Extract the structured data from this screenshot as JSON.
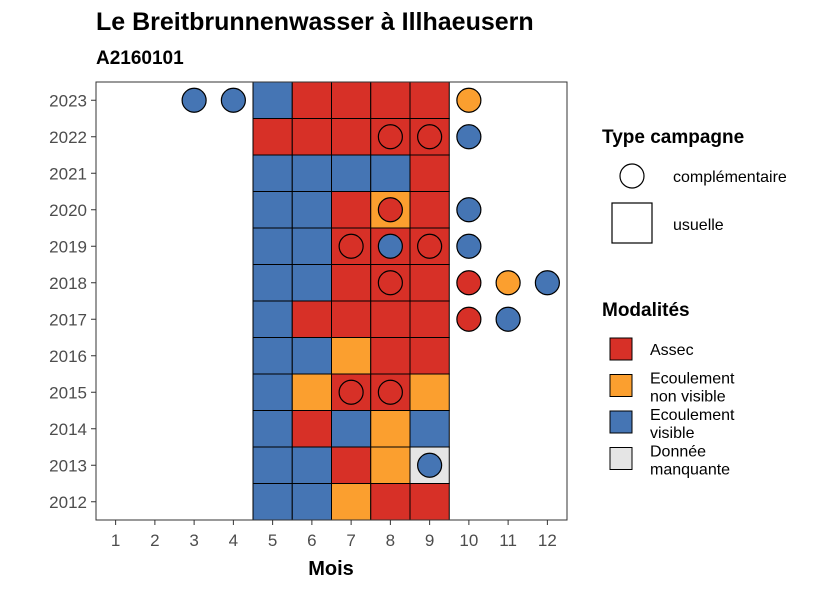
{
  "chart_data": {
    "type": "heatmap",
    "title": "Le Breitbrunnenwasser à Illhaeusern",
    "subtitle": "A2160101",
    "xlabel": "Mois",
    "ylabel": "",
    "x_ticks": [
      "1",
      "2",
      "3",
      "4",
      "5",
      "6",
      "7",
      "8",
      "9",
      "10",
      "11",
      "12"
    ],
    "y_ticks": [
      "2012",
      "2013",
      "2014",
      "2015",
      "2016",
      "2017",
      "2018",
      "2019",
      "2020",
      "2021",
      "2022",
      "2023"
    ],
    "xlim": [
      0.5,
      12.5
    ],
    "ylim": [
      2011.5,
      2023.5
    ],
    "grid": false,
    "legend_position": "right",
    "legends": {
      "campaign": {
        "title": "Type campagne",
        "items": [
          {
            "key": "complementaire",
            "label": "complémentaire",
            "shape": "circle"
          },
          {
            "key": "usuelle",
            "label": "usuelle",
            "shape": "square"
          }
        ]
      },
      "modalites": {
        "title": "Modalités",
        "items": [
          {
            "key": "assec",
            "label_lines": [
              "Assec"
            ],
            "color": "#d73027"
          },
          {
            "key": "ecnv",
            "label_lines": [
              "Ecoulement",
              "non visible"
            ],
            "color": "#fb9f2f"
          },
          {
            "key": "ecv",
            "label_lines": [
              "Ecoulement",
              "visible"
            ],
            "color": "#4575b4"
          },
          {
            "key": "dm",
            "label_lines": [
              "Donnée",
              "manquante"
            ],
            "color": "#e5e5e5"
          }
        ]
      }
    },
    "usuelle": [
      {
        "year": 2023,
        "months": {
          "5": "ecv",
          "6": "assec",
          "7": "assec",
          "8": "assec",
          "9": "assec"
        }
      },
      {
        "year": 2022,
        "months": {
          "5": "assec",
          "6": "assec",
          "7": "assec",
          "8": "assec",
          "9": "assec"
        }
      },
      {
        "year": 2021,
        "months": {
          "5": "ecv",
          "6": "ecv",
          "7": "ecv",
          "8": "ecv",
          "9": "assec"
        }
      },
      {
        "year": 2020,
        "months": {
          "5": "ecv",
          "6": "ecv",
          "7": "assec",
          "8": "ecnv",
          "9": "assec"
        }
      },
      {
        "year": 2019,
        "months": {
          "5": "ecv",
          "6": "ecv",
          "7": "assec",
          "8": "assec",
          "9": "assec"
        }
      },
      {
        "year": 2018,
        "months": {
          "5": "ecv",
          "6": "ecv",
          "7": "assec",
          "8": "assec",
          "9": "assec"
        }
      },
      {
        "year": 2017,
        "months": {
          "5": "ecv",
          "6": "assec",
          "7": "assec",
          "8": "assec",
          "9": "assec"
        }
      },
      {
        "year": 2016,
        "months": {
          "5": "ecv",
          "6": "ecv",
          "7": "ecnv",
          "8": "assec",
          "9": "assec"
        }
      },
      {
        "year": 2015,
        "months": {
          "5": "ecv",
          "6": "ecnv",
          "7": "assec",
          "8": "assec",
          "9": "ecnv"
        }
      },
      {
        "year": 2014,
        "months": {
          "5": "ecv",
          "6": "assec",
          "7": "ecv",
          "8": "ecnv",
          "9": "ecv"
        }
      },
      {
        "year": 2013,
        "months": {
          "5": "ecv",
          "6": "ecv",
          "7": "assec",
          "8": "ecnv",
          "9": "dm"
        }
      },
      {
        "year": 2012,
        "months": {
          "5": "ecv",
          "6": "ecv",
          "7": "ecnv",
          "8": "assec",
          "9": "assec"
        }
      }
    ],
    "complementaire": [
      {
        "year": 2023,
        "month": 3,
        "value": "ecv"
      },
      {
        "year": 2023,
        "month": 4,
        "value": "ecv"
      },
      {
        "year": 2023,
        "month": 10,
        "value": "ecnv"
      },
      {
        "year": 2022,
        "month": 8,
        "value": "assec"
      },
      {
        "year": 2022,
        "month": 9,
        "value": "assec"
      },
      {
        "year": 2022,
        "month": 10,
        "value": "ecv"
      },
      {
        "year": 2020,
        "month": 8,
        "value": "assec"
      },
      {
        "year": 2020,
        "month": 10,
        "value": "ecv"
      },
      {
        "year": 2019,
        "month": 7,
        "value": "assec"
      },
      {
        "year": 2019,
        "month": 8,
        "value": "ecv"
      },
      {
        "year": 2019,
        "month": 9,
        "value": "assec"
      },
      {
        "year": 2019,
        "month": 10,
        "value": "ecv"
      },
      {
        "year": 2018,
        "month": 8,
        "value": "assec"
      },
      {
        "year": 2018,
        "month": 10,
        "value": "assec"
      },
      {
        "year": 2018,
        "month": 11,
        "value": "ecnv"
      },
      {
        "year": 2018,
        "month": 12,
        "value": "ecv"
      },
      {
        "year": 2017,
        "month": 10,
        "value": "assec"
      },
      {
        "year": 2017,
        "month": 11,
        "value": "ecv"
      },
      {
        "year": 2015,
        "month": 7,
        "value": "assec"
      },
      {
        "year": 2015,
        "month": 8,
        "value": "assec"
      },
      {
        "year": 2013,
        "month": 9,
        "value": "ecv"
      }
    ]
  }
}
